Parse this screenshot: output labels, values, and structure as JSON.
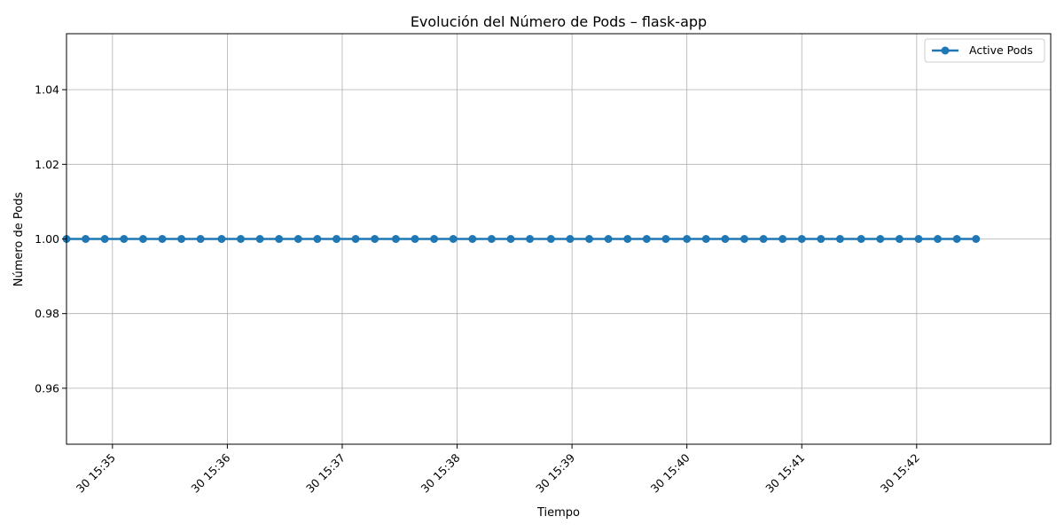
{
  "chart_data": {
    "type": "line",
    "title": "Evolución del Número de Pods – flask-app",
    "xlabel": "Tiempo",
    "ylabel": "Número de Pods",
    "x_tick_labels": [
      "30 15:35",
      "30 15:36",
      "30 15:37",
      "30 15:38",
      "30 15:39",
      "30 15:40",
      "30 15:41",
      "30 15:42"
    ],
    "y_tick_labels": [
      "0.96",
      "0.98",
      "1.00",
      "1.02",
      "1.04"
    ],
    "y_ticks": [
      0.96,
      0.98,
      1.0,
      1.02,
      1.04
    ],
    "ylim": [
      0.945,
      1.055
    ],
    "xlim_minutes": [
      "15:34:36",
      "15:43:10"
    ],
    "grid": true,
    "legend_position": "top-right",
    "series": [
      {
        "name": "Active Pods",
        "color": "#1f77b4",
        "marker": "circle",
        "x": [
          "15:34:36",
          "15:34:46",
          "15:34:56",
          "15:35:06",
          "15:35:16",
          "15:35:26",
          "15:35:36",
          "15:35:46",
          "15:35:57",
          "15:36:07",
          "15:36:17",
          "15:36:27",
          "15:36:37",
          "15:36:47",
          "15:36:57",
          "15:37:07",
          "15:37:17",
          "15:37:28",
          "15:37:38",
          "15:37:48",
          "15:37:58",
          "15:38:08",
          "15:38:18",
          "15:38:28",
          "15:38:38",
          "15:38:49",
          "15:38:59",
          "15:39:09",
          "15:39:19",
          "15:39:29",
          "15:39:39",
          "15:39:49",
          "15:40:00",
          "15:40:10",
          "15:40:20",
          "15:40:30",
          "15:40:40",
          "15:40:50",
          "15:41:00",
          "15:41:10",
          "15:41:20",
          "15:41:31",
          "15:41:41",
          "15:41:51",
          "15:42:01",
          "15:42:11",
          "15:42:21",
          "15:42:31"
        ],
        "values": [
          1,
          1,
          1,
          1,
          1,
          1,
          1,
          1,
          1,
          1,
          1,
          1,
          1,
          1,
          1,
          1,
          1,
          1,
          1,
          1,
          1,
          1,
          1,
          1,
          1,
          1,
          1,
          1,
          1,
          1,
          1,
          1,
          1,
          1,
          1,
          1,
          1,
          1,
          1,
          1,
          1,
          1,
          1,
          1,
          1,
          1,
          1,
          1
        ]
      }
    ]
  }
}
